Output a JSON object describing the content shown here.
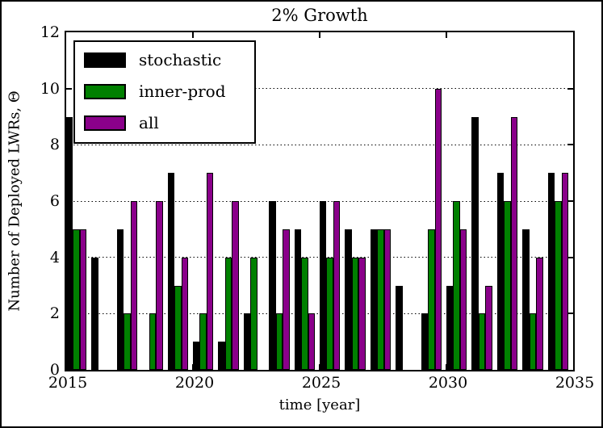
{
  "chart_data": {
    "type": "bar",
    "title": "2% Growth",
    "xlabel": "time [year]",
    "ylabel": "Number of Deployed LWRs, Θ",
    "categories": [
      2015,
      2016,
      2017,
      2018,
      2019,
      2020,
      2021,
      2022,
      2023,
      2024,
      2025,
      2026,
      2027,
      2028,
      2029,
      2030,
      2031,
      2032,
      2033,
      2034
    ],
    "series": [
      {
        "name": "stochastic",
        "color": "#000000",
        "values": [
          9,
          4,
          5,
          0,
          7,
          1,
          1,
          2,
          6,
          5,
          6,
          5,
          5,
          3,
          2,
          3,
          9,
          7,
          5,
          7
        ]
      },
      {
        "name": "inner-prod",
        "color": "#008000",
        "values": [
          5,
          0,
          2,
          2,
          3,
          2,
          4,
          4,
          2,
          4,
          4,
          4,
          5,
          0,
          5,
          6,
          2,
          6,
          2,
          6
        ]
      },
      {
        "name": "all",
        "color": "#8a008a",
        "values": [
          5,
          0,
          6,
          6,
          4,
          7,
          6,
          0,
          5,
          2,
          6,
          4,
          5,
          0,
          10,
          5,
          3,
          9,
          4,
          7
        ]
      }
    ],
    "ylim": [
      0,
      12
    ],
    "yticks": [
      0,
      2,
      4,
      6,
      8,
      10,
      12
    ],
    "grid_values": [
      2,
      4,
      6,
      8,
      10
    ],
    "xticks": [
      2015,
      2020,
      2025,
      2030,
      2035
    ],
    "xlim": [
      2015,
      2035
    ],
    "grid": "horizontal-dotted",
    "legend_position": "upper-left"
  },
  "legend": {
    "items": [
      {
        "label": "stochastic",
        "color": "#000000"
      },
      {
        "label": "inner-prod",
        "color": "#008000"
      },
      {
        "label": "all",
        "color": "#8a008a"
      }
    ]
  }
}
